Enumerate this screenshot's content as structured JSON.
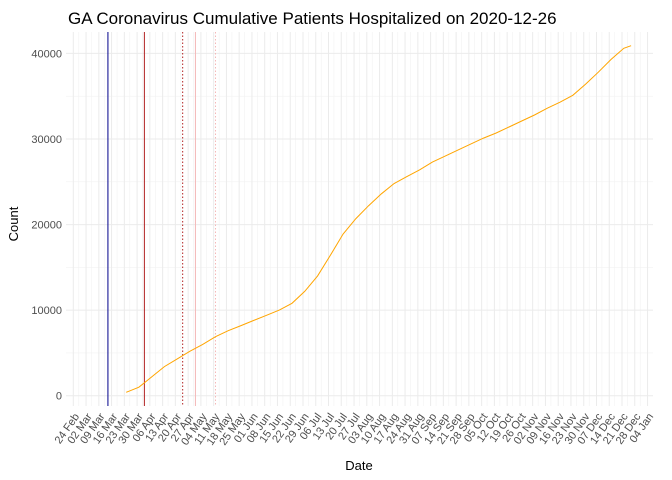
{
  "chart_data": {
    "type": "line",
    "title": "GA Coronavirus Cumulative Patients Hospitalized on 2020-12-26",
    "xlabel": "Date",
    "ylabel": "Count",
    "xlim": [
      "2020-02-20",
      "2021-01-07"
    ],
    "ylim": [
      -1200,
      42500
    ],
    "y_ticks": [
      0,
      10000,
      20000,
      30000,
      40000
    ],
    "y_tick_labels": [
      "0",
      "10000",
      "20000",
      "30000",
      "40000"
    ],
    "x_ticks": [
      "2020-02-24",
      "2020-03-02",
      "2020-03-09",
      "2020-03-16",
      "2020-03-23",
      "2020-03-30",
      "2020-04-06",
      "2020-04-13",
      "2020-04-20",
      "2020-04-27",
      "2020-05-04",
      "2020-05-11",
      "2020-05-18",
      "2020-05-25",
      "2020-06-01",
      "2020-06-08",
      "2020-06-15",
      "2020-06-22",
      "2020-06-29",
      "2020-07-06",
      "2020-07-13",
      "2020-07-20",
      "2020-07-27",
      "2020-08-03",
      "2020-08-10",
      "2020-08-17",
      "2020-08-24",
      "2020-08-31",
      "2020-09-07",
      "2020-09-14",
      "2020-09-21",
      "2020-09-28",
      "2020-10-05",
      "2020-10-12",
      "2020-10-19",
      "2020-10-26",
      "2020-11-02",
      "2020-11-09",
      "2020-11-16",
      "2020-11-23",
      "2020-11-30",
      "2020-12-07",
      "2020-12-14",
      "2020-12-21",
      "2020-12-28",
      "2021-01-04"
    ],
    "x_tick_labels": [
      "24 Feb",
      "02 Mar",
      "09 Mar",
      "16 Mar",
      "23 Mar",
      "30 Mar",
      "06 Apr",
      "13 Apr",
      "20 Apr",
      "27 Apr",
      "04 May",
      "11 May",
      "18 May",
      "25 May",
      "01 Jun",
      "08 Jun",
      "15 Jun",
      "22 Jun",
      "29 Jun",
      "06 Jul",
      "13 Jul",
      "20 Jul",
      "27 Jul",
      "03 Aug",
      "10 Aug",
      "17 Aug",
      "24 Aug",
      "31 Aug",
      "07 Sep",
      "14 Sep",
      "21 Sep",
      "28 Sep",
      "05 Oct",
      "12 Oct",
      "19 Oct",
      "26 Oct",
      "02 Nov",
      "09 Nov",
      "16 Nov",
      "23 Nov",
      "30 Nov",
      "07 Dec",
      "14 Dec",
      "21 Dec",
      "28 Dec",
      "04 Jan"
    ],
    "grid": true,
    "vlines": [
      {
        "x": "2020-03-14",
        "color": "#00008b",
        "style": "solid"
      },
      {
        "x": "2020-04-03",
        "color": "#b22222",
        "style": "solid"
      },
      {
        "x": "2020-04-24",
        "color": "#b22222",
        "style": "dotted"
      },
      {
        "x": "2020-05-01",
        "color": "#f4b8b8",
        "style": "solid"
      },
      {
        "x": "2020-05-12",
        "color": "#f4b8b8",
        "style": "dotted"
      }
    ],
    "series": [
      {
        "color": "#ffa500",
        "x": [
          "2020-03-24",
          "2020-03-31",
          "2020-04-07",
          "2020-04-14",
          "2020-04-21",
          "2020-04-28",
          "2020-05-05",
          "2020-05-12",
          "2020-05-19",
          "2020-05-26",
          "2020-06-02",
          "2020-06-09",
          "2020-06-16",
          "2020-06-23",
          "2020-06-30",
          "2020-07-07",
          "2020-07-14",
          "2020-07-21",
          "2020-07-28",
          "2020-08-04",
          "2020-08-11",
          "2020-08-18",
          "2020-08-25",
          "2020-09-01",
          "2020-09-08",
          "2020-09-15",
          "2020-09-22",
          "2020-09-29",
          "2020-10-06",
          "2020-10-13",
          "2020-10-20",
          "2020-10-27",
          "2020-11-03",
          "2020-11-10",
          "2020-11-17",
          "2020-11-24",
          "2020-12-01",
          "2020-12-08",
          "2020-12-15",
          "2020-12-22",
          "2020-12-26"
        ],
        "y": [
          400,
          1000,
          2200,
          3400,
          4300,
          5200,
          6000,
          6900,
          7600,
          8200,
          8800,
          9400,
          10000,
          10800,
          12200,
          14000,
          16400,
          18900,
          20700,
          22200,
          23600,
          24800,
          25600,
          26400,
          27300,
          28000,
          28700,
          29400,
          30100,
          30700,
          31400,
          32100,
          32800,
          33600,
          34300,
          35100,
          36400,
          37800,
          39300,
          40600,
          40900
        ]
      }
    ]
  }
}
